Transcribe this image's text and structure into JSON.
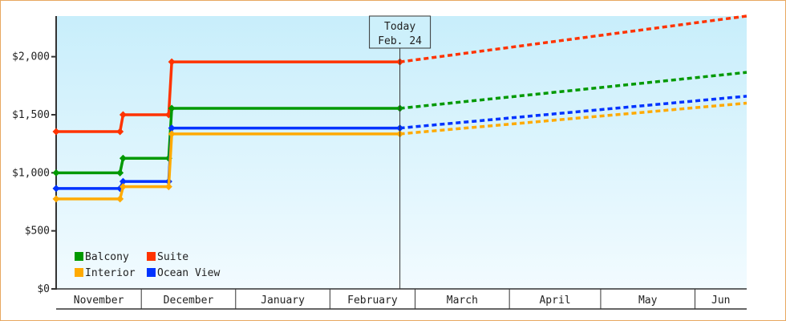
{
  "chart_data": {
    "type": "line",
    "title": "",
    "xlabel": "",
    "ylabel": "",
    "x_range": [
      "Nov 3",
      "Jun 18"
    ],
    "ylim": [
      0,
      2350
    ],
    "y_ticks": [
      {
        "value": 0,
        "label": "$0"
      },
      {
        "value": 500,
        "label": "$500"
      },
      {
        "value": 1000,
        "label": "$1,000"
      },
      {
        "value": 1500,
        "label": "$1,500"
      },
      {
        "value": 2000,
        "label": "$2,000"
      }
    ],
    "months": [
      "November",
      "December",
      "January",
      "February",
      "March",
      "April",
      "May",
      "Jun"
    ],
    "today": {
      "line1": "Today",
      "line2": "Feb. 24",
      "date": "Feb 24"
    },
    "legend": {
      "placement": "bottom-left"
    },
    "background": {
      "top": "#c8eefb",
      "bottom": "#f2fbff"
    },
    "series": [
      {
        "name": "Suite",
        "color": "#ff3300",
        "history": [
          [
            "Nov 3",
            1355
          ],
          [
            "Nov 24",
            1355
          ],
          [
            "Nov 25",
            1500
          ],
          [
            "Dec 10",
            1500
          ],
          [
            "Dec 11",
            1955
          ],
          [
            "Feb 24",
            1955
          ]
        ],
        "projection": [
          [
            "Feb 24",
            1955
          ],
          [
            "Jun 18",
            2350
          ]
        ]
      },
      {
        "name": "Balcony",
        "color": "#009900",
        "history": [
          [
            "Nov 3",
            1000
          ],
          [
            "Nov 24",
            1000
          ],
          [
            "Nov 25",
            1125
          ],
          [
            "Dec 10",
            1125
          ],
          [
            "Dec 11",
            1555
          ],
          [
            "Feb 24",
            1555
          ]
        ],
        "projection": [
          [
            "Feb 24",
            1555
          ],
          [
            "Jun 18",
            1865
          ]
        ]
      },
      {
        "name": "Ocean View",
        "color": "#0033ff",
        "history": [
          [
            "Nov 3",
            865
          ],
          [
            "Nov 24",
            865
          ],
          [
            "Nov 25",
            925
          ],
          [
            "Dec 10",
            925
          ],
          [
            "Dec 11",
            1385
          ],
          [
            "Feb 24",
            1385
          ]
        ],
        "projection": [
          [
            "Feb 24",
            1385
          ],
          [
            "Jun 18",
            1660
          ]
        ]
      },
      {
        "name": "Interior",
        "color": "#ffaa00",
        "history": [
          [
            "Nov 3",
            775
          ],
          [
            "Nov 24",
            775
          ],
          [
            "Nov 25",
            880
          ],
          [
            "Dec 10",
            880
          ],
          [
            "Dec 11",
            1335
          ],
          [
            "Feb 24",
            1335
          ]
        ],
        "projection": [
          [
            "Feb 24",
            1335
          ],
          [
            "Jun 18",
            1600
          ]
        ]
      }
    ],
    "legend_order": [
      "Balcony",
      "Suite",
      "Interior",
      "Ocean View"
    ]
  }
}
